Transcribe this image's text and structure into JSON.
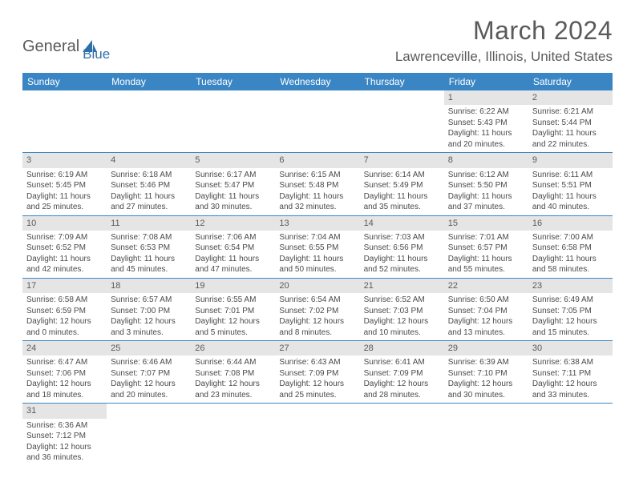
{
  "brand": {
    "part1": "General",
    "part2": "Blue"
  },
  "title": "March 2024",
  "location": "Lawrenceville, Illinois, United States",
  "dayHeaders": [
    "Sunday",
    "Monday",
    "Tuesday",
    "Wednesday",
    "Thursday",
    "Friday",
    "Saturday"
  ],
  "colors": {
    "headerBg": "#3a86c4",
    "dayNumBg": "#e5e5e5",
    "border": "#3a86c4",
    "logoBlue": "#2f6fa8",
    "textGray": "#5a5a5a"
  },
  "weeks": [
    [
      {
        "n": "",
        "lines": []
      },
      {
        "n": "",
        "lines": []
      },
      {
        "n": "",
        "lines": []
      },
      {
        "n": "",
        "lines": []
      },
      {
        "n": "",
        "lines": []
      },
      {
        "n": "1",
        "lines": [
          "Sunrise: 6:22 AM",
          "Sunset: 5:43 PM",
          "Daylight: 11 hours and 20 minutes."
        ]
      },
      {
        "n": "2",
        "lines": [
          "Sunrise: 6:21 AM",
          "Sunset: 5:44 PM",
          "Daylight: 11 hours and 22 minutes."
        ]
      }
    ],
    [
      {
        "n": "3",
        "lines": [
          "Sunrise: 6:19 AM",
          "Sunset: 5:45 PM",
          "Daylight: 11 hours and 25 minutes."
        ]
      },
      {
        "n": "4",
        "lines": [
          "Sunrise: 6:18 AM",
          "Sunset: 5:46 PM",
          "Daylight: 11 hours and 27 minutes."
        ]
      },
      {
        "n": "5",
        "lines": [
          "Sunrise: 6:17 AM",
          "Sunset: 5:47 PM",
          "Daylight: 11 hours and 30 minutes."
        ]
      },
      {
        "n": "6",
        "lines": [
          "Sunrise: 6:15 AM",
          "Sunset: 5:48 PM",
          "Daylight: 11 hours and 32 minutes."
        ]
      },
      {
        "n": "7",
        "lines": [
          "Sunrise: 6:14 AM",
          "Sunset: 5:49 PM",
          "Daylight: 11 hours and 35 minutes."
        ]
      },
      {
        "n": "8",
        "lines": [
          "Sunrise: 6:12 AM",
          "Sunset: 5:50 PM",
          "Daylight: 11 hours and 37 minutes."
        ]
      },
      {
        "n": "9",
        "lines": [
          "Sunrise: 6:11 AM",
          "Sunset: 5:51 PM",
          "Daylight: 11 hours and 40 minutes."
        ]
      }
    ],
    [
      {
        "n": "10",
        "lines": [
          "Sunrise: 7:09 AM",
          "Sunset: 6:52 PM",
          "Daylight: 11 hours and 42 minutes."
        ]
      },
      {
        "n": "11",
        "lines": [
          "Sunrise: 7:08 AM",
          "Sunset: 6:53 PM",
          "Daylight: 11 hours and 45 minutes."
        ]
      },
      {
        "n": "12",
        "lines": [
          "Sunrise: 7:06 AM",
          "Sunset: 6:54 PM",
          "Daylight: 11 hours and 47 minutes."
        ]
      },
      {
        "n": "13",
        "lines": [
          "Sunrise: 7:04 AM",
          "Sunset: 6:55 PM",
          "Daylight: 11 hours and 50 minutes."
        ]
      },
      {
        "n": "14",
        "lines": [
          "Sunrise: 7:03 AM",
          "Sunset: 6:56 PM",
          "Daylight: 11 hours and 52 minutes."
        ]
      },
      {
        "n": "15",
        "lines": [
          "Sunrise: 7:01 AM",
          "Sunset: 6:57 PM",
          "Daylight: 11 hours and 55 minutes."
        ]
      },
      {
        "n": "16",
        "lines": [
          "Sunrise: 7:00 AM",
          "Sunset: 6:58 PM",
          "Daylight: 11 hours and 58 minutes."
        ]
      }
    ],
    [
      {
        "n": "17",
        "lines": [
          "Sunrise: 6:58 AM",
          "Sunset: 6:59 PM",
          "Daylight: 12 hours and 0 minutes."
        ]
      },
      {
        "n": "18",
        "lines": [
          "Sunrise: 6:57 AM",
          "Sunset: 7:00 PM",
          "Daylight: 12 hours and 3 minutes."
        ]
      },
      {
        "n": "19",
        "lines": [
          "Sunrise: 6:55 AM",
          "Sunset: 7:01 PM",
          "Daylight: 12 hours and 5 minutes."
        ]
      },
      {
        "n": "20",
        "lines": [
          "Sunrise: 6:54 AM",
          "Sunset: 7:02 PM",
          "Daylight: 12 hours and 8 minutes."
        ]
      },
      {
        "n": "21",
        "lines": [
          "Sunrise: 6:52 AM",
          "Sunset: 7:03 PM",
          "Daylight: 12 hours and 10 minutes."
        ]
      },
      {
        "n": "22",
        "lines": [
          "Sunrise: 6:50 AM",
          "Sunset: 7:04 PM",
          "Daylight: 12 hours and 13 minutes."
        ]
      },
      {
        "n": "23",
        "lines": [
          "Sunrise: 6:49 AM",
          "Sunset: 7:05 PM",
          "Daylight: 12 hours and 15 minutes."
        ]
      }
    ],
    [
      {
        "n": "24",
        "lines": [
          "Sunrise: 6:47 AM",
          "Sunset: 7:06 PM",
          "Daylight: 12 hours and 18 minutes."
        ]
      },
      {
        "n": "25",
        "lines": [
          "Sunrise: 6:46 AM",
          "Sunset: 7:07 PM",
          "Daylight: 12 hours and 20 minutes."
        ]
      },
      {
        "n": "26",
        "lines": [
          "Sunrise: 6:44 AM",
          "Sunset: 7:08 PM",
          "Daylight: 12 hours and 23 minutes."
        ]
      },
      {
        "n": "27",
        "lines": [
          "Sunrise: 6:43 AM",
          "Sunset: 7:09 PM",
          "Daylight: 12 hours and 25 minutes."
        ]
      },
      {
        "n": "28",
        "lines": [
          "Sunrise: 6:41 AM",
          "Sunset: 7:09 PM",
          "Daylight: 12 hours and 28 minutes."
        ]
      },
      {
        "n": "29",
        "lines": [
          "Sunrise: 6:39 AM",
          "Sunset: 7:10 PM",
          "Daylight: 12 hours and 30 minutes."
        ]
      },
      {
        "n": "30",
        "lines": [
          "Sunrise: 6:38 AM",
          "Sunset: 7:11 PM",
          "Daylight: 12 hours and 33 minutes."
        ]
      }
    ],
    [
      {
        "n": "31",
        "lines": [
          "Sunrise: 6:36 AM",
          "Sunset: 7:12 PM",
          "Daylight: 12 hours and 36 minutes."
        ]
      },
      {
        "n": "",
        "lines": []
      },
      {
        "n": "",
        "lines": []
      },
      {
        "n": "",
        "lines": []
      },
      {
        "n": "",
        "lines": []
      },
      {
        "n": "",
        "lines": []
      },
      {
        "n": "",
        "lines": []
      }
    ]
  ]
}
